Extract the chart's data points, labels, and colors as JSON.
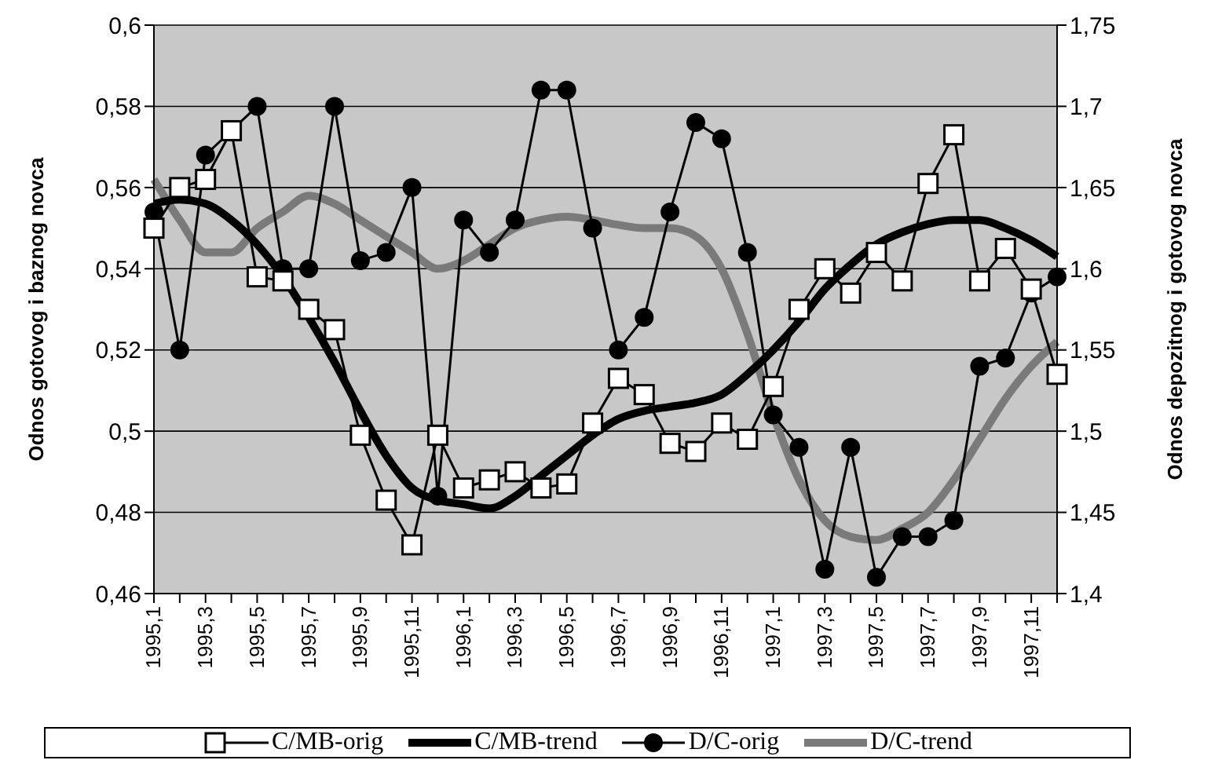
{
  "chart_data": {
    "type": "line",
    "ylabel": "Odnos gotovog i baznog novca",
    "y2label": "Odnos depozitnog i gotovog novca",
    "categories": [
      "1995,1",
      null,
      "1995,3",
      null,
      "1995,5",
      null,
      "1995,7",
      null,
      "1995,9",
      null,
      "1995,11",
      null,
      "1996,1",
      null,
      "1996,3",
      null,
      "1996,5",
      null,
      "1996,7",
      null,
      "1996,9",
      null,
      "1996,11",
      null,
      "1997,1",
      null,
      "1997,3",
      null,
      "1997,5",
      null,
      "1997,7",
      null,
      "1997,9",
      null,
      "1997,11",
      null
    ],
    "series": [
      {
        "name": "C/MB-orig",
        "color": "#000000",
        "marker": "square",
        "values": [
          0.55,
          0.56,
          0.562,
          0.574,
          0.538,
          0.537,
          0.53,
          0.525,
          0.499,
          0.483,
          0.472,
          0.499,
          0.486,
          0.488,
          0.49,
          0.486,
          0.487,
          0.502,
          0.513,
          0.509,
          0.497,
          0.495,
          0.502,
          0.498,
          0.511,
          0.53,
          0.54,
          0.534,
          0.544,
          0.537,
          0.561,
          0.573,
          0.537,
          0.545,
          0.535,
          0.514
        ]
      },
      {
        "name": "C/MB-trend",
        "color": "#000000",
        "marker": "none",
        "values": [
          0.556,
          0.557,
          0.556,
          0.552,
          0.546,
          0.538,
          0.528,
          0.517,
          0.505,
          0.494,
          0.486,
          0.483,
          0.482,
          0.481,
          0.484,
          0.489,
          0.494,
          0.499,
          0.503,
          0.505,
          0.506,
          0.507,
          0.509,
          0.514,
          0.52,
          0.527,
          0.535,
          0.541,
          0.546,
          0.549,
          0.551,
          0.552,
          0.552,
          0.55,
          0.547,
          0.543
        ]
      },
      {
        "name": "D/C-orig",
        "color": "#000000",
        "marker": "circle",
        "axis": "y2",
        "values": [
          1.635,
          1.55,
          1.67,
          1.685,
          1.7,
          1.6,
          1.6,
          1.7,
          1.605,
          1.61,
          1.65,
          1.46,
          1.63,
          1.61,
          1.63,
          1.71,
          1.71,
          1.625,
          1.55,
          1.57,
          1.635,
          1.69,
          1.68,
          1.61,
          1.51,
          1.49,
          1.415,
          1.49,
          1.41,
          1.435,
          1.435,
          1.445,
          1.54,
          1.545,
          1.585,
          1.595
        ]
      },
      {
        "name": "D/C-trend",
        "color": "#7a7a7a",
        "marker": "none",
        "axis": "y2",
        "values": [
          1.655,
          1.63,
          1.61,
          1.61,
          1.625,
          1.635,
          1.645,
          1.64,
          1.63,
          1.62,
          1.61,
          1.6,
          1.605,
          1.615,
          1.625,
          1.63,
          1.632,
          1.63,
          1.627,
          1.625,
          1.625,
          1.62,
          1.6,
          1.56,
          1.51,
          1.47,
          1.445,
          1.435,
          1.433,
          1.44,
          1.45,
          1.47,
          1.495,
          1.52,
          1.54,
          1.555
        ]
      }
    ],
    "ylim": [
      0.46,
      0.6
    ],
    "yticks": [
      {
        "value": 0.46,
        "label": "0,46"
      },
      {
        "value": 0.48,
        "label": "0,48"
      },
      {
        "value": 0.5,
        "label": "0,5"
      },
      {
        "value": 0.52,
        "label": "0,52"
      },
      {
        "value": 0.54,
        "label": "0,54"
      },
      {
        "value": 0.56,
        "label": "0,56"
      },
      {
        "value": 0.58,
        "label": "0,58"
      },
      {
        "value": 0.6,
        "label": "0,6"
      }
    ],
    "y2lim": [
      1.4,
      1.75
    ],
    "y2ticks": [
      {
        "value": 1.4,
        "label": "1,4"
      },
      {
        "value": 1.45,
        "label": "1,45"
      },
      {
        "value": 1.5,
        "label": "1,5"
      },
      {
        "value": 1.55,
        "label": "1,55"
      },
      {
        "value": 1.6,
        "label": "1,6"
      },
      {
        "value": 1.65,
        "label": "1,65"
      },
      {
        "value": 1.7,
        "label": "1,7"
      },
      {
        "value": 1.75,
        "label": "1,75"
      }
    ],
    "grid": "y",
    "legend": "bottom"
  }
}
